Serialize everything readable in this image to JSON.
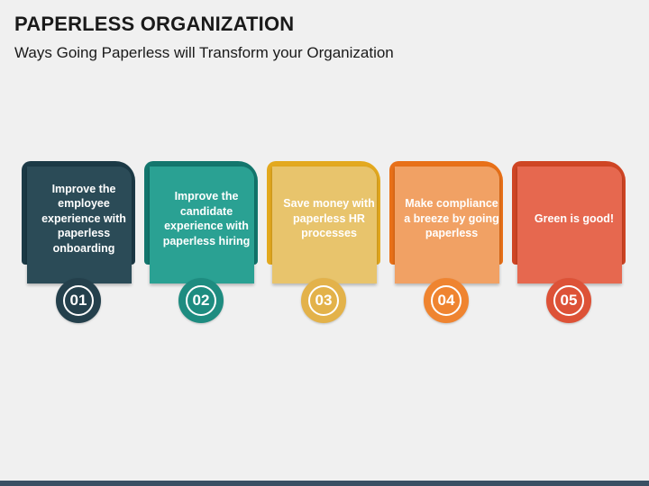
{
  "header": {
    "title": "PAPERLESS ORGANIZATION",
    "subtitle": "Ways Going Paperless will Transform your Organization"
  },
  "steps": [
    {
      "number": "01",
      "text": "Improve the employee experience with paperless onboarding",
      "color": "#2b4b57"
    },
    {
      "number": "02",
      "text": "Improve the candidate experience with paperless hiring",
      "color": "#2aa193"
    },
    {
      "number": "03",
      "text": "Save money with paperless HR processes",
      "color": "#e8c46c"
    },
    {
      "number": "04",
      "text": "Make compliance a breeze by going paperless",
      "color": "#f1a164"
    },
    {
      "number": "05",
      "text": "Green is good!",
      "color": "#e6684f"
    }
  ]
}
